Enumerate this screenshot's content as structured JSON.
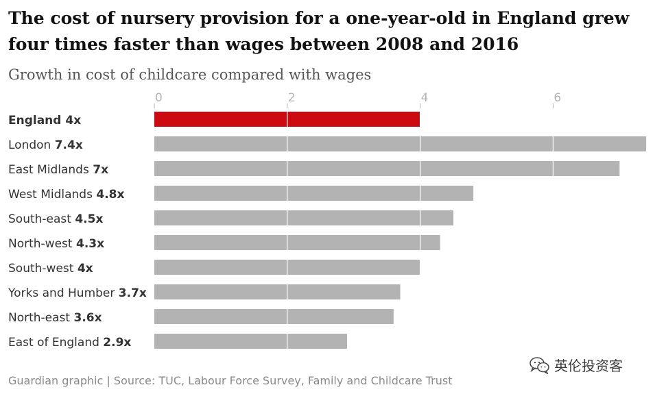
{
  "title": "The cost of nursery provision for a one-year-old in England grew four times faster than wages between 2008 and 2016",
  "subtitle": "Growth in cost of childcare compared with wages",
  "footer": "Guardian graphic | Source: TUC, Labour Force Survey, Family and Childcare Trust",
  "watermark": "英伦投资客",
  "watermark_icon": "wechat-logo-icon",
  "colors": {
    "highlight": "#cc0a11",
    "bar": "#b3b3b3",
    "gridline": "#ffffff",
    "axis_tick": "#b3b3b3"
  },
  "chart_data": {
    "type": "bar",
    "orientation": "horizontal",
    "title": "The cost of nursery provision for a one-year-old in England grew four times faster than wages between 2008 and 2016",
    "subtitle": "Growth in cost of childcare compared with wages",
    "xlim": [
      0,
      7.4
    ],
    "xticks": [
      "0",
      "2",
      "4",
      "6"
    ],
    "xtick_values": [
      0,
      2,
      4,
      6
    ],
    "categories": [
      "England",
      "London",
      "East Midlands",
      "West Midlands",
      "South-east",
      "North-west",
      "South-west",
      "Yorks and Humber",
      "North-east",
      "East of England"
    ],
    "value_labels": [
      "4x",
      "7.4x",
      "7x",
      "4.8x",
      "4.5x",
      "4.3x",
      "4x",
      "3.7x",
      "3.6x",
      "2.9x"
    ],
    "values": [
      4,
      7.4,
      7,
      4.8,
      4.5,
      4.3,
      4,
      3.7,
      3.6,
      2.9
    ],
    "highlight": "England",
    "grid": true,
    "legend": "none"
  }
}
